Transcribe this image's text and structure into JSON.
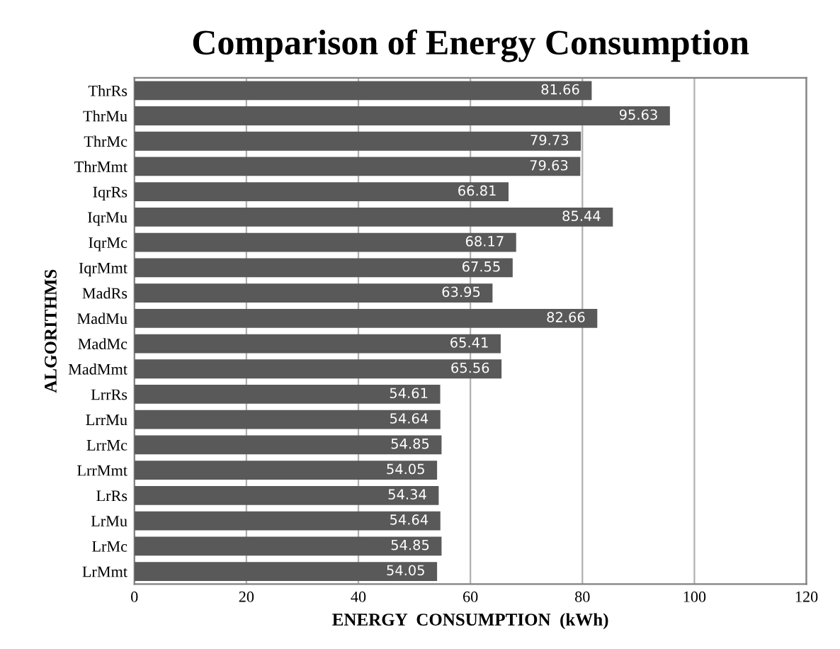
{
  "chart_data": {
    "type": "bar",
    "orientation": "horizontal",
    "title": "Comparison of Energy Consumption",
    "xlabel": "ENERGY  CONSUMPTION  (kWh)",
    "ylabel": "ALGORITHMS",
    "categories": [
      "ThrRs",
      "ThrMu",
      "ThrMc",
      "ThrMmt",
      "IqrRs",
      "IqrMu",
      "IqrMc",
      "IqrMmt",
      "MadRs",
      "MadMu",
      "MadMc",
      "MadMmt",
      "LrrRs",
      "LrrMu",
      "LrrMc",
      "LrrMmt",
      "LrRs",
      "LrMu",
      "LrMc",
      "LrMmt"
    ],
    "values": [
      81.66,
      95.63,
      79.73,
      79.63,
      66.81,
      85.44,
      68.17,
      67.55,
      63.95,
      82.66,
      65.41,
      65.56,
      54.61,
      54.64,
      54.85,
      54.05,
      54.34,
      54.64,
      54.85,
      54.05
    ],
    "color": "#595959",
    "xlim": [
      0,
      120
    ],
    "xticks": [
      0,
      20,
      40,
      60,
      80,
      100,
      120
    ],
    "grid": "x",
    "data_labels": true
  }
}
